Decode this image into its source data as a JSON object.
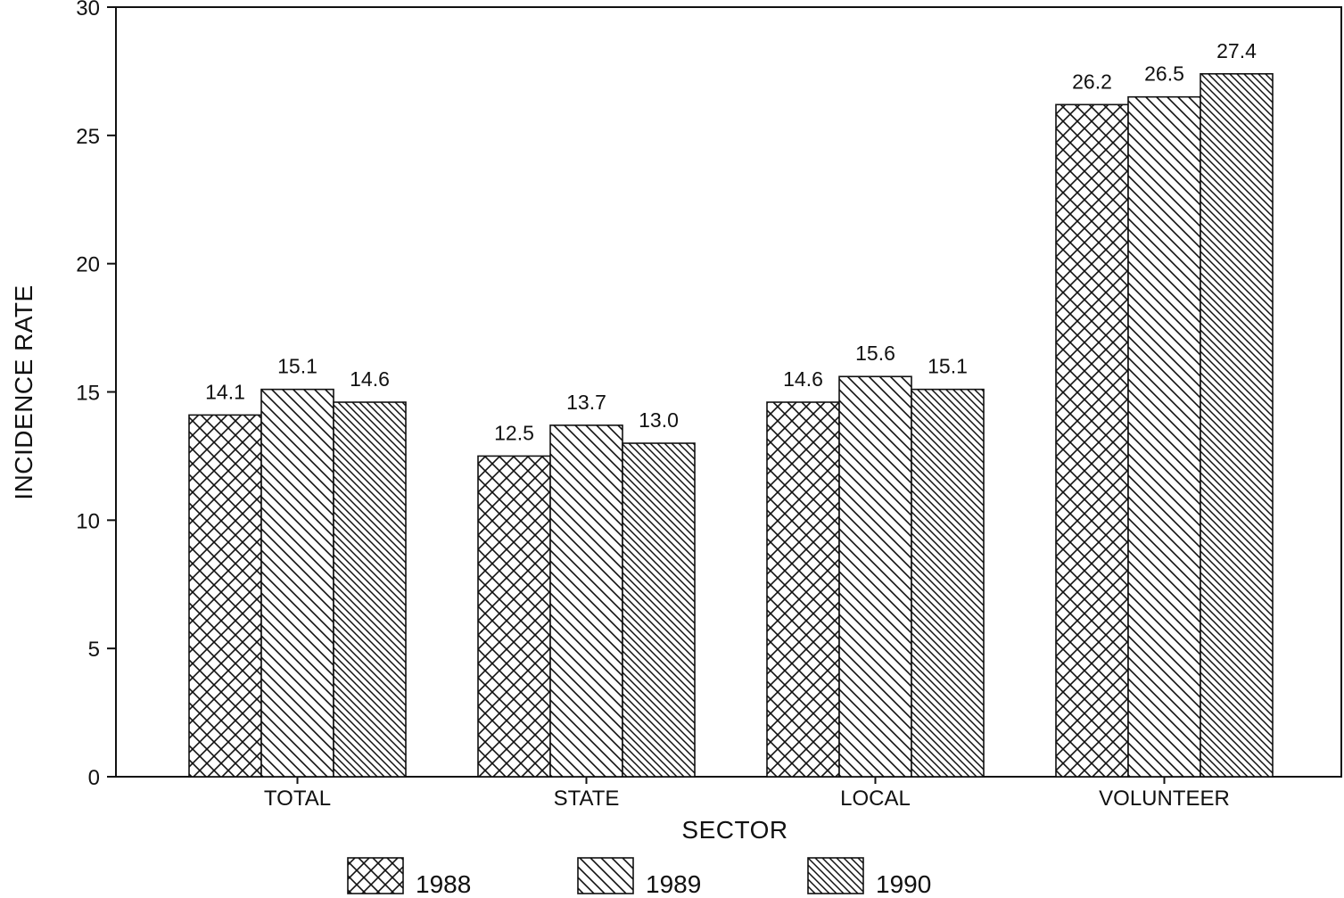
{
  "chart_data": {
    "type": "bar",
    "xlabel": "SECTOR",
    "ylabel": "INCIDENCE RATE",
    "categories": [
      "TOTAL",
      "STATE",
      "LOCAL",
      "VOLUNTEER"
    ],
    "series": [
      {
        "name": "1988",
        "values": [
          14.1,
          12.5,
          14.6,
          26.2
        ],
        "pattern": "crosshatch"
      },
      {
        "name": "1989",
        "values": [
          15.1,
          13.7,
          15.6,
          26.5
        ],
        "pattern": "diagonal-wide"
      },
      {
        "name": "1990",
        "values": [
          14.6,
          13.0,
          15.1,
          27.4
        ],
        "pattern": "diagonal-dense"
      }
    ],
    "value_labels": [
      [
        "14.1",
        "12.5",
        "14.6",
        "26.2"
      ],
      [
        "15.1",
        "13.7",
        "15.6",
        "26.5"
      ],
      [
        "14.6",
        "13.0",
        "15.1",
        "27.4"
      ]
    ],
    "ylim": [
      0,
      30
    ],
    "yticks": [
      0,
      5,
      10,
      15,
      20,
      25,
      30
    ],
    "grid": false,
    "legend_position": "bottom",
    "colors": {
      "bar_fill": "#ffffff",
      "stroke": "#111111"
    }
  }
}
